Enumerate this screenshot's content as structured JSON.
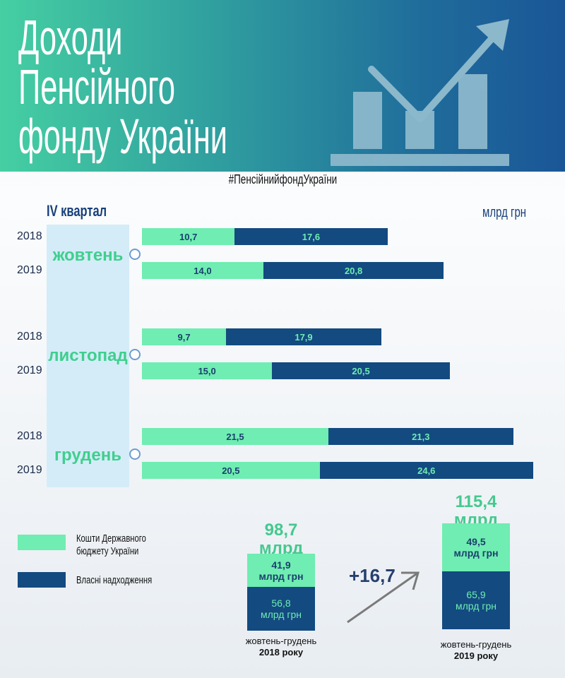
{
  "header": {
    "title_lines": [
      "Доходи",
      "Пенсійного",
      "фонду України"
    ],
    "hashtag": "#ПенсійнийфондУкраїни"
  },
  "chart_data": {
    "type": "bar",
    "orientation": "horizontal",
    "stacked": true,
    "title": "Доходи Пенсійного фонду України",
    "subtitle": "IV квартал",
    "unit": "млрд грн",
    "months": [
      "жовтень",
      "листопад",
      "грудень"
    ],
    "years": [
      "2018",
      "2019"
    ],
    "series": [
      {
        "name": "Кошти Державного бюджету України",
        "color": "#6fedb2",
        "values": [
          [
            10.7,
            14.0
          ],
          [
            9.7,
            15.0
          ],
          [
            21.5,
            20.5
          ]
        ]
      },
      {
        "name": "Власні надходження",
        "color": "#134a80",
        "values": [
          [
            17.6,
            20.8
          ],
          [
            17.9,
            20.5
          ],
          [
            21.3,
            24.6
          ]
        ]
      }
    ],
    "value_labels": [
      [
        [
          "10,7",
          "17,6"
        ],
        [
          "14,0",
          "20,8"
        ]
      ],
      [
        [
          "9,7",
          "17,9"
        ],
        [
          "15,0",
          "20,5"
        ]
      ],
      [
        [
          "21,5",
          "21,3"
        ],
        [
          "20,5",
          "24,6"
        ]
      ]
    ]
  },
  "legend": {
    "budget": "Кошти Державного бюджету України",
    "budget_l1": "Кошти Державного",
    "budget_l2": "бюджету України",
    "own": "Власні надходження"
  },
  "summary": {
    "y2018": {
      "total": "98,7",
      "unit": "млрд грн",
      "budget": "41,9",
      "own": "56,8",
      "caption1": "жовтень-грудень",
      "caption2": "2018 року"
    },
    "y2019": {
      "total": "115,4",
      "unit": "млрд грн",
      "budget": "49,5",
      "own": "65,9",
      "caption1": "жовтень-грудень",
      "caption2": "2019 року"
    },
    "diff": "+16,7"
  }
}
